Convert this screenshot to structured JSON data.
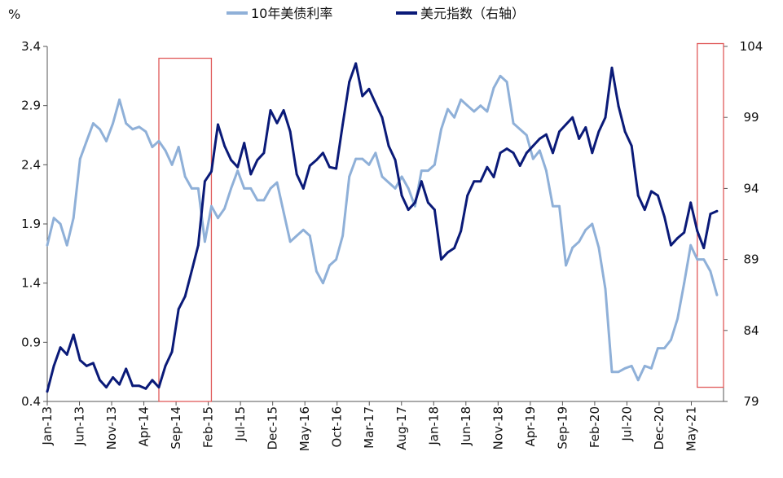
{
  "chart_data": {
    "type": "line",
    "title": "",
    "left_axis": {
      "unit_label": "%",
      "ylim": [
        0.4,
        3.4
      ],
      "ticks": [
        "0.4",
        "0.9",
        "1.4",
        "1.9",
        "2.4",
        "2.9",
        "3.4"
      ]
    },
    "right_axis": {
      "unit_label": "",
      "ylim": [
        79,
        104
      ],
      "ticks": [
        "79",
        "84",
        "89",
        "94",
        "99",
        "104"
      ]
    },
    "x_axis": {
      "tick_labels": [
        "Jan-13",
        "Jun-13",
        "Nov-13",
        "Apr-14",
        "Sep-14",
        "Feb-15",
        "Jul-15",
        "Dec-15",
        "May-16",
        "Oct-16",
        "Mar-17",
        "Aug-17",
        "Jan-18",
        "Jun-18",
        "Nov-18",
        "Apr-19",
        "Sep-19",
        "Feb-20",
        "Jul-20",
        "Dec-20",
        "May-21"
      ],
      "start": "2013-01",
      "end": "2021-08"
    },
    "legend_position": "top-center",
    "grid": false,
    "series": [
      {
        "name": "10年美债利率",
        "axis": "left",
        "color": "#8fb0d8",
        "points": [
          [
            "2013-01",
            1.72
          ],
          [
            "2013-02",
            1.95
          ],
          [
            "2013-03",
            1.9
          ],
          [
            "2013-04",
            1.72
          ],
          [
            "2013-05",
            1.95
          ],
          [
            "2013-06",
            2.45
          ],
          [
            "2013-07",
            2.6
          ],
          [
            "2013-08",
            2.75
          ],
          [
            "2013-09",
            2.7
          ],
          [
            "2013-10",
            2.6
          ],
          [
            "2013-11",
            2.75
          ],
          [
            "2013-12",
            2.95
          ],
          [
            "2014-01",
            2.75
          ],
          [
            "2014-02",
            2.7
          ],
          [
            "2014-03",
            2.72
          ],
          [
            "2014-04",
            2.68
          ],
          [
            "2014-05",
            2.55
          ],
          [
            "2014-06",
            2.6
          ],
          [
            "2014-07",
            2.52
          ],
          [
            "2014-08",
            2.4
          ],
          [
            "2014-09",
            2.55
          ],
          [
            "2014-10",
            2.3
          ],
          [
            "2014-11",
            2.2
          ],
          [
            "2014-12",
            2.2
          ],
          [
            "2015-01",
            1.75
          ],
          [
            "2015-02",
            2.05
          ],
          [
            "2015-03",
            1.95
          ],
          [
            "2015-04",
            2.03
          ],
          [
            "2015-05",
            2.2
          ],
          [
            "2015-06",
            2.35
          ],
          [
            "2015-07",
            2.2
          ],
          [
            "2015-08",
            2.2
          ],
          [
            "2015-09",
            2.1
          ],
          [
            "2015-10",
            2.1
          ],
          [
            "2015-11",
            2.2
          ],
          [
            "2015-12",
            2.25
          ],
          [
            "2016-01",
            2.0
          ],
          [
            "2016-02",
            1.75
          ],
          [
            "2016-03",
            1.8
          ],
          [
            "2016-04",
            1.85
          ],
          [
            "2016-05",
            1.8
          ],
          [
            "2016-06",
            1.5
          ],
          [
            "2016-07",
            1.4
          ],
          [
            "2016-08",
            1.55
          ],
          [
            "2016-09",
            1.6
          ],
          [
            "2016-10",
            1.8
          ],
          [
            "2016-11",
            2.3
          ],
          [
            "2016-12",
            2.45
          ],
          [
            "2017-01",
            2.45
          ],
          [
            "2017-02",
            2.4
          ],
          [
            "2017-03",
            2.5
          ],
          [
            "2017-04",
            2.3
          ],
          [
            "2017-05",
            2.25
          ],
          [
            "2017-06",
            2.2
          ],
          [
            "2017-07",
            2.3
          ],
          [
            "2017-08",
            2.2
          ],
          [
            "2017-09",
            2.05
          ],
          [
            "2017-10",
            2.35
          ],
          [
            "2017-11",
            2.35
          ],
          [
            "2017-12",
            2.4
          ],
          [
            "2018-01",
            2.7
          ],
          [
            "2018-02",
            2.87
          ],
          [
            "2018-03",
            2.8
          ],
          [
            "2018-04",
            2.95
          ],
          [
            "2018-05",
            2.9
          ],
          [
            "2018-06",
            2.85
          ],
          [
            "2018-07",
            2.9
          ],
          [
            "2018-08",
            2.85
          ],
          [
            "2018-09",
            3.05
          ],
          [
            "2018-10",
            3.15
          ],
          [
            "2018-11",
            3.1
          ],
          [
            "2018-12",
            2.75
          ],
          [
            "2019-01",
            2.7
          ],
          [
            "2019-02",
            2.65
          ],
          [
            "2019-03",
            2.45
          ],
          [
            "2019-04",
            2.52
          ],
          [
            "2019-05",
            2.35
          ],
          [
            "2019-06",
            2.05
          ],
          [
            "2019-07",
            2.05
          ],
          [
            "2019-08",
            1.55
          ],
          [
            "2019-09",
            1.7
          ],
          [
            "2019-10",
            1.75
          ],
          [
            "2019-11",
            1.85
          ],
          [
            "2019-12",
            1.9
          ],
          [
            "2020-01",
            1.7
          ],
          [
            "2020-02",
            1.35
          ],
          [
            "2020-03",
            0.65
          ],
          [
            "2020-04",
            0.65
          ],
          [
            "2020-05",
            0.68
          ],
          [
            "2020-06",
            0.7
          ],
          [
            "2020-07",
            0.58
          ],
          [
            "2020-08",
            0.7
          ],
          [
            "2020-09",
            0.68
          ],
          [
            "2020-10",
            0.85
          ],
          [
            "2020-11",
            0.85
          ],
          [
            "2020-12",
            0.92
          ],
          [
            "2021-01",
            1.1
          ],
          [
            "2021-02",
            1.4
          ],
          [
            "2021-03",
            1.72
          ],
          [
            "2021-04",
            1.6
          ],
          [
            "2021-05",
            1.6
          ],
          [
            "2021-06",
            1.5
          ],
          [
            "2021-07",
            1.3
          ]
        ]
      },
      {
        "name": "美元指数（右轴）",
        "axis": "right",
        "color": "#0a1a78",
        "points": [
          [
            "2013-01",
            79.7
          ],
          [
            "2013-02",
            81.5
          ],
          [
            "2013-03",
            82.8
          ],
          [
            "2013-04",
            82.3
          ],
          [
            "2013-05",
            83.7
          ],
          [
            "2013-06",
            81.9
          ],
          [
            "2013-07",
            81.5
          ],
          [
            "2013-08",
            81.7
          ],
          [
            "2013-09",
            80.5
          ],
          [
            "2013-10",
            80.0
          ],
          [
            "2013-11",
            80.7
          ],
          [
            "2013-12",
            80.2
          ],
          [
            "2014-01",
            81.3
          ],
          [
            "2014-02",
            80.1
          ],
          [
            "2014-03",
            80.1
          ],
          [
            "2014-04",
            79.9
          ],
          [
            "2014-05",
            80.5
          ],
          [
            "2014-06",
            80.0
          ],
          [
            "2014-07",
            81.5
          ],
          [
            "2014-08",
            82.5
          ],
          [
            "2014-09",
            85.5
          ],
          [
            "2014-10",
            86.4
          ],
          [
            "2014-11",
            88.2
          ],
          [
            "2014-12",
            90.0
          ],
          [
            "2015-01",
            94.5
          ],
          [
            "2015-02",
            95.2
          ],
          [
            "2015-03",
            98.5
          ],
          [
            "2015-04",
            97.0
          ],
          [
            "2015-05",
            96.0
          ],
          [
            "2015-06",
            95.5
          ],
          [
            "2015-07",
            97.2
          ],
          [
            "2015-08",
            95.0
          ],
          [
            "2015-09",
            96.0
          ],
          [
            "2015-10",
            96.5
          ],
          [
            "2015-11",
            99.5
          ],
          [
            "2015-12",
            98.6
          ],
          [
            "2016-01",
            99.5
          ],
          [
            "2016-02",
            98.0
          ],
          [
            "2016-03",
            95.0
          ],
          [
            "2016-04",
            94.0
          ],
          [
            "2016-05",
            95.6
          ],
          [
            "2016-06",
            96.0
          ],
          [
            "2016-07",
            96.5
          ],
          [
            "2016-08",
            95.5
          ],
          [
            "2016-09",
            95.4
          ],
          [
            "2016-10",
            98.5
          ],
          [
            "2016-11",
            101.5
          ],
          [
            "2016-12",
            102.8
          ],
          [
            "2017-01",
            100.5
          ],
          [
            "2017-02",
            101.0
          ],
          [
            "2017-03",
            100.0
          ],
          [
            "2017-04",
            99.0
          ],
          [
            "2017-05",
            97.0
          ],
          [
            "2017-06",
            96.0
          ],
          [
            "2017-07",
            93.5
          ],
          [
            "2017-08",
            92.5
          ],
          [
            "2017-09",
            93.0
          ],
          [
            "2017-10",
            94.5
          ],
          [
            "2017-11",
            93.0
          ],
          [
            "2017-12",
            92.5
          ],
          [
            "2018-01",
            89.0
          ],
          [
            "2018-02",
            89.5
          ],
          [
            "2018-03",
            89.8
          ],
          [
            "2018-04",
            91.0
          ],
          [
            "2018-05",
            93.5
          ],
          [
            "2018-06",
            94.5
          ],
          [
            "2018-07",
            94.5
          ],
          [
            "2018-08",
            95.5
          ],
          [
            "2018-09",
            94.8
          ],
          [
            "2018-10",
            96.5
          ],
          [
            "2018-11",
            96.8
          ],
          [
            "2018-12",
            96.5
          ],
          [
            "2019-01",
            95.6
          ],
          [
            "2019-02",
            96.5
          ],
          [
            "2019-03",
            97.0
          ],
          [
            "2019-04",
            97.5
          ],
          [
            "2019-05",
            97.8
          ],
          [
            "2019-06",
            96.5
          ],
          [
            "2019-07",
            98.0
          ],
          [
            "2019-08",
            98.5
          ],
          [
            "2019-09",
            99.0
          ],
          [
            "2019-10",
            97.5
          ],
          [
            "2019-11",
            98.3
          ],
          [
            "2019-12",
            96.5
          ],
          [
            "2020-01",
            98.0
          ],
          [
            "2020-02",
            99.0
          ],
          [
            "2020-03",
            102.5
          ],
          [
            "2020-04",
            99.8
          ],
          [
            "2020-05",
            98.0
          ],
          [
            "2020-06",
            97.0
          ],
          [
            "2020-07",
            93.5
          ],
          [
            "2020-08",
            92.5
          ],
          [
            "2020-09",
            93.8
          ],
          [
            "2020-10",
            93.5
          ],
          [
            "2020-11",
            92.0
          ],
          [
            "2020-12",
            90.0
          ],
          [
            "2021-01",
            90.5
          ],
          [
            "2021-02",
            90.9
          ],
          [
            "2021-03",
            93.0
          ],
          [
            "2021-04",
            91.0
          ],
          [
            "2021-05",
            89.8
          ],
          [
            "2021-06",
            92.2
          ],
          [
            "2021-07",
            92.4
          ]
        ]
      }
    ],
    "annotations": [
      {
        "type": "rect",
        "color": "#e05a5a",
        "x_range": [
          "2014-06",
          "2015-02"
        ],
        "y_left_range": [
          0.4,
          3.3
        ]
      },
      {
        "type": "rect",
        "color": "#e05a5a",
        "x_range": [
          "2021-04",
          "2021-08"
        ],
        "y_right_range": [
          80,
          104.2
        ]
      }
    ]
  }
}
